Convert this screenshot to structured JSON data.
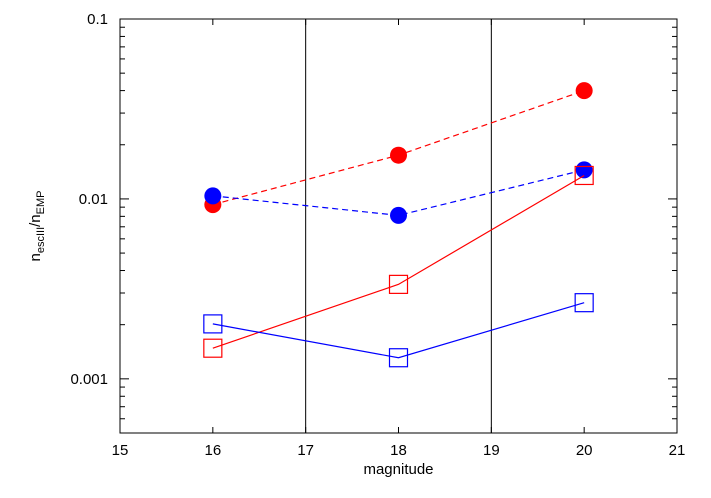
{
  "chart_data": {
    "type": "line",
    "title": "",
    "xlabel": "magnitude",
    "ylabel": {
      "n_main": "n",
      "n_sub": "escIII",
      "slash": "/",
      "d_main": "n",
      "d_sub": "EMP"
    },
    "x_scale": "linear",
    "y_scale": "log",
    "xlim": [
      15,
      21
    ],
    "ylim": [
      0.0005,
      0.1
    ],
    "x_ticks": [
      15,
      16,
      17,
      18,
      19,
      20,
      21
    ],
    "x_tick_labels": [
      "15",
      "16",
      "17",
      "18",
      "19",
      "20",
      "21"
    ],
    "y_ticks": [
      0.001,
      0.01,
      0.1
    ],
    "y_tick_labels": [
      "0.001",
      "0.01",
      "0.1"
    ],
    "vertical_lines": [
      17,
      19
    ],
    "grid": false,
    "legend": "none",
    "series": [
      {
        "color": "#ff0000",
        "marker": "filled-circle",
        "line": "dashed",
        "points": [
          [
            16,
            0.0093
          ],
          [
            18,
            0.0175
          ],
          [
            20,
            0.04
          ]
        ]
      },
      {
        "color": "#0000ff",
        "marker": "filled-circle",
        "line": "dashed",
        "points": [
          [
            16,
            0.0104
          ],
          [
            18,
            0.0081
          ],
          [
            20,
            0.0145
          ]
        ]
      },
      {
        "color": "#ff0000",
        "marker": "open-square",
        "line": "solid",
        "points": [
          [
            16,
            0.00148
          ],
          [
            18,
            0.00335
          ],
          [
            20,
            0.0135
          ]
        ]
      },
      {
        "color": "#0000ff",
        "marker": "open-square",
        "line": "solid",
        "points": [
          [
            16,
            0.00202
          ],
          [
            18,
            0.00131
          ],
          [
            20,
            0.00265
          ]
        ]
      }
    ]
  }
}
